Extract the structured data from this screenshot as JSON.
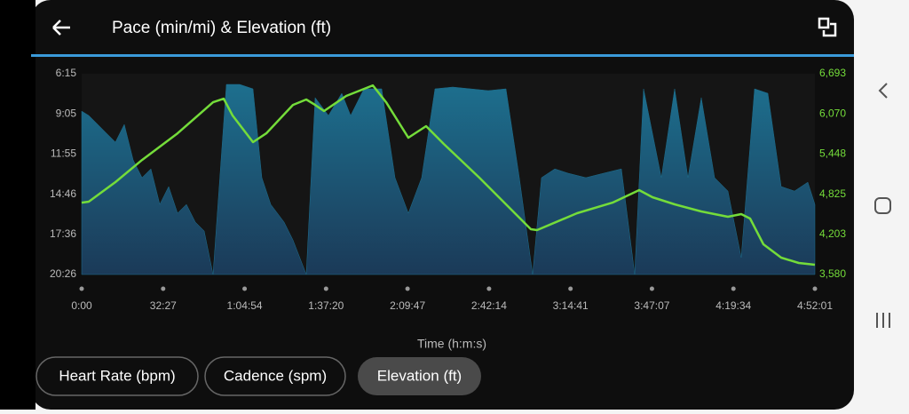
{
  "header": {
    "title": "Pace (min/mi) & Elevation (ft)"
  },
  "chart_data": {
    "type": "area",
    "xlabel": "Time (h:m:s)",
    "xlim": [
      0,
      17521
    ],
    "xticks": [
      {
        "value": 0,
        "label": "0:00"
      },
      {
        "value": 1947,
        "label": "32:27"
      },
      {
        "value": 3894,
        "label": "1:04:54"
      },
      {
        "value": 5840,
        "label": "1:37:20"
      },
      {
        "value": 7787,
        "label": "2:09:47"
      },
      {
        "value": 9734,
        "label": "2:42:14"
      },
      {
        "value": 11681,
        "label": "3:14:41"
      },
      {
        "value": 13627,
        "label": "3:47:07"
      },
      {
        "value": 15574,
        "label": "4:19:34"
      },
      {
        "value": 17521,
        "label": "4:52:01"
      }
    ],
    "ylim": [
      20.4333,
      6.25
    ],
    "yticks": [
      {
        "value": 6.25,
        "label": "6:15"
      },
      {
        "value": 9.0833,
        "label": "9:05"
      },
      {
        "value": 11.9167,
        "label": "11:55"
      },
      {
        "value": 14.7667,
        "label": "14:46"
      },
      {
        "value": 17.6,
        "label": "17:36"
      },
      {
        "value": 20.4333,
        "label": "20:26"
      }
    ],
    "y2lim": [
      3580,
      6693
    ],
    "y2ticks": [
      {
        "value": 3580,
        "label": "3,580"
      },
      {
        "value": 4203,
        "label": "4,203"
      },
      {
        "value": 4825,
        "label": "4,825"
      },
      {
        "value": 5448,
        "label": "5,448"
      },
      {
        "value": 6070,
        "label": "6,070"
      },
      {
        "value": 6693,
        "label": "6,693"
      }
    ],
    "series": [
      {
        "type": "area",
        "axis": "y",
        "color": "#1d6f8e",
        "x": [
          0,
          170,
          382,
          594,
          806,
          1018,
          1230,
          1442,
          1655,
          1867,
          2079,
          2291,
          2503,
          2715,
          2927,
          3139,
          3458,
          3776,
          4094,
          4306,
          4518,
          4836,
          5048,
          5367,
          5579,
          5897,
          6215,
          6427,
          6746,
          7170,
          7488,
          7806,
          8124,
          8443,
          8867,
          9291,
          9715,
          10139,
          10458,
          10776,
          10988,
          11306,
          11624,
          12048,
          12473,
          12897,
          13215,
          13427,
          13851,
          14170,
          14488,
          14806,
          15124,
          15443,
          15761,
          16079,
          16397,
          16715,
          17034,
          17352,
          17521
        ],
        "values": [
          8.89,
          9.2,
          9.83,
          10.46,
          11.08,
          9.83,
          12.34,
          13.59,
          12.97,
          15.48,
          14.22,
          16.1,
          15.48,
          16.73,
          17.36,
          20.43,
          7.0,
          7.0,
          7.32,
          13.59,
          15.48,
          16.73,
          17.99,
          20.43,
          7.94,
          9.2,
          7.63,
          9.2,
          7.32,
          7.32,
          13.59,
          16.1,
          13.59,
          7.32,
          7.19,
          7.32,
          7.44,
          7.32,
          13.59,
          20.43,
          13.59,
          12.97,
          13.28,
          13.59,
          13.28,
          12.97,
          20.43,
          7.32,
          13.59,
          7.32,
          13.59,
          7.94,
          13.59,
          14.54,
          19.24,
          7.32,
          7.63,
          14.22,
          14.54,
          13.91,
          15.48
        ]
      },
      {
        "type": "line",
        "axis": "y2",
        "color": "#74dc3a",
        "x": [
          0,
          170,
          806,
          1442,
          2291,
          3139,
          3394,
          3606,
          4094,
          4412,
          5048,
          5367,
          5579,
          5791,
          6321,
          6958,
          7276,
          7806,
          8230,
          8655,
          9503,
          10139,
          10733,
          10882,
          11836,
          12685,
          13321,
          13639,
          14170,
          14806,
          15443,
          15761,
          15973,
          16291,
          16715,
          17136,
          17521
        ],
        "values": [
          4695,
          4709,
          5012,
          5356,
          5769,
          6251,
          6306,
          6045,
          5632,
          5769,
          6210,
          6293,
          6210,
          6114,
          6348,
          6513,
          6251,
          5701,
          5880,
          5604,
          5081,
          4668,
          4282,
          4269,
          4530,
          4695,
          4888,
          4778,
          4668,
          4558,
          4475,
          4516,
          4448,
          4048,
          3842,
          3759,
          3731
        ]
      }
    ]
  },
  "tabs": [
    "Heart Rate (bpm)",
    "Cadence (spm)",
    "Elevation (ft)"
  ]
}
